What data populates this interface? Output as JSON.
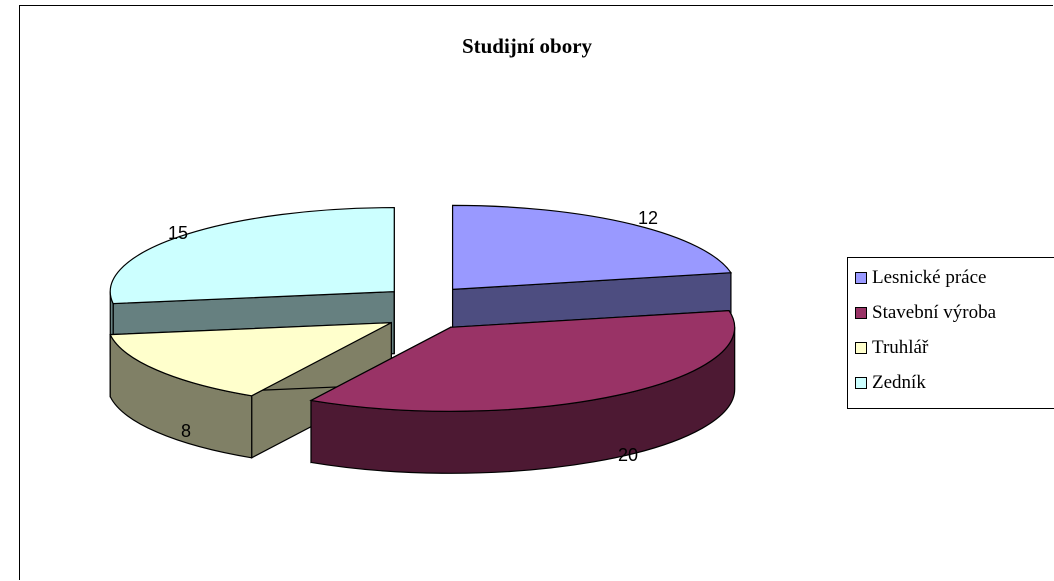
{
  "chart_data": {
    "type": "pie",
    "title": "Studijní obory",
    "categories": [
      "Lesnické práce",
      "Stavební výroba",
      "Truhlář",
      "Zedník"
    ],
    "values": [
      12,
      20,
      8,
      15
    ],
    "colors": [
      "#9999ff",
      "#993366",
      "#ffffcc",
      "#ccffff"
    ],
    "side_colors": [
      "#4d4d80",
      "#4d1933",
      "#808066",
      "#668080"
    ],
    "exploded": true,
    "three_d": true,
    "legend_position": "right"
  }
}
